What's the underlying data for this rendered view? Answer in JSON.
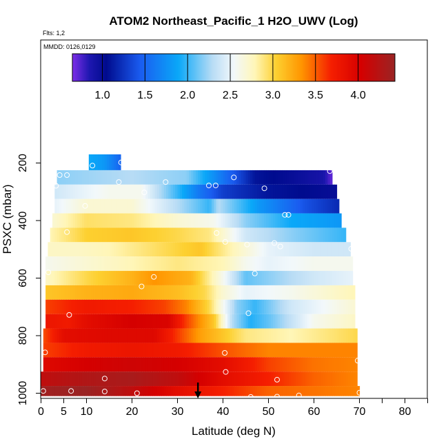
{
  "chart_data": {
    "type": "heatmap",
    "title": "ATOM2 Northeast_Pacific_1 H2O_UWV (Log)",
    "flights_note": "Flts: 1,2",
    "dates_note": "MMDD: 0126,0129",
    "xlabel": "Latitude (deg N)",
    "ylabel": "PSXC (mbar)",
    "xlim": [
      0,
      85
    ],
    "ylim": [
      1000,
      0
    ],
    "x_ticks": [
      0,
      5,
      10,
      20,
      30,
      40,
      50,
      60,
      70,
      80
    ],
    "x_minor_ticks": [
      75,
      85
    ],
    "y_ticks": [
      200,
      400,
      600,
      800,
      1000
    ],
    "colorbar": {
      "range": [
        0.65,
        4.45
      ],
      "ticks": [
        1.0,
        1.5,
        2.0,
        2.5,
        3.0,
        3.5,
        4.0
      ],
      "tick_labels": [
        "1.0",
        "1.5",
        "2.0",
        "2.5",
        "3.0",
        "3.5",
        "4.0"
      ],
      "color_stops": [
        {
          "v": 0.65,
          "c": "#7d2ee8"
        },
        {
          "v": 0.85,
          "c": "#1e17b0"
        },
        {
          "v": 1.05,
          "c": "#000b8e"
        },
        {
          "v": 1.45,
          "c": "#1a5cf0"
        },
        {
          "v": 1.9,
          "c": "#0aa8f8"
        },
        {
          "v": 2.3,
          "c": "#b8dcf5"
        },
        {
          "v": 2.55,
          "c": "#f2f8fb"
        },
        {
          "v": 2.8,
          "c": "#fff6b8"
        },
        {
          "v": 3.05,
          "c": "#fdd030"
        },
        {
          "v": 3.35,
          "c": "#ff9500"
        },
        {
          "v": 3.7,
          "c": "#f51e00"
        },
        {
          "v": 4.05,
          "c": "#d50000"
        },
        {
          "v": 4.45,
          "c": "#9a2424"
        }
      ]
    },
    "bands": [
      {
        "p_top": 170,
        "p_bot": 225,
        "lat_start": 10.5,
        "lat_end": 17.5,
        "profile": [
          [
            10.5,
            1.9
          ],
          [
            14,
            1.8
          ],
          [
            17.5,
            1.5
          ]
        ]
      },
      {
        "p_top": 225,
        "p_bot": 275,
        "lat_start": 3.5,
        "lat_end": 64,
        "profile": [
          [
            3.5,
            2.2
          ],
          [
            20,
            2.3
          ],
          [
            32,
            2.2
          ],
          [
            40,
            1.6
          ],
          [
            47,
            1.1
          ],
          [
            55,
            1.0
          ],
          [
            62,
            0.9
          ],
          [
            64,
            0.7
          ]
        ]
      },
      {
        "p_top": 275,
        "p_bot": 325,
        "lat_start": 3,
        "lat_end": 65,
        "profile": [
          [
            3,
            2.4
          ],
          [
            15,
            2.6
          ],
          [
            22,
            2.6
          ],
          [
            30,
            2.0
          ],
          [
            35,
            1.6
          ],
          [
            40,
            1.3
          ],
          [
            50,
            1.1
          ],
          [
            65,
            1.0
          ]
        ]
      },
      {
        "p_top": 325,
        "p_bot": 375,
        "lat_start": 3,
        "lat_end": 65.5,
        "profile": [
          [
            3,
            2.5
          ],
          [
            10,
            2.7
          ],
          [
            20,
            2.7
          ],
          [
            30,
            2.3
          ],
          [
            37,
            2.0
          ],
          [
            39,
            2.3
          ],
          [
            48,
            1.8
          ],
          [
            58,
            1.4
          ],
          [
            65.5,
            1.2
          ]
        ]
      },
      {
        "p_top": 375,
        "p_bot": 425,
        "lat_start": 2.5,
        "lat_end": 66,
        "profile": [
          [
            2.5,
            2.7
          ],
          [
            10,
            2.95
          ],
          [
            20,
            2.9
          ],
          [
            30,
            2.7
          ],
          [
            38,
            2.6
          ],
          [
            45,
            2.2
          ],
          [
            55,
            1.9
          ],
          [
            66,
            1.8
          ]
        ]
      },
      {
        "p_top": 425,
        "p_bot": 475,
        "lat_start": 2,
        "lat_end": 67,
        "profile": [
          [
            2,
            2.8
          ],
          [
            10,
            3.05
          ],
          [
            20,
            3.1
          ],
          [
            30,
            3.0
          ],
          [
            37,
            2.9
          ],
          [
            45,
            2.4
          ],
          [
            55,
            2.2
          ],
          [
            67,
            2.0
          ]
        ]
      },
      {
        "p_top": 475,
        "p_bot": 525,
        "lat_start": 1.5,
        "lat_end": 68,
        "profile": [
          [
            1.5,
            2.75
          ],
          [
            8,
            2.75
          ],
          [
            15,
            2.8
          ],
          [
            25,
            2.95
          ],
          [
            35,
            3.1
          ],
          [
            42,
            2.8
          ],
          [
            50,
            2.5
          ],
          [
            60,
            2.4
          ],
          [
            68,
            2.4
          ]
        ]
      },
      {
        "p_top": 525,
        "p_bot": 575,
        "lat_start": 1,
        "lat_end": 68.5,
        "profile": [
          [
            1,
            2.6
          ],
          [
            10,
            2.7
          ],
          [
            20,
            2.8
          ],
          [
            30,
            2.9
          ],
          [
            40,
            2.8
          ],
          [
            45,
            2.6
          ],
          [
            50,
            2.5
          ],
          [
            60,
            2.6
          ],
          [
            68.5,
            2.6
          ]
        ]
      },
      {
        "p_top": 575,
        "p_bot": 625,
        "lat_start": 1,
        "lat_end": 68.5,
        "profile": [
          [
            1,
            2.75
          ],
          [
            10,
            3.0
          ],
          [
            20,
            3.2
          ],
          [
            25,
            3.35
          ],
          [
            33,
            3.2
          ],
          [
            40,
            2.6
          ],
          [
            45,
            2.1
          ],
          [
            50,
            2.2
          ],
          [
            60,
            2.4
          ],
          [
            68.5,
            2.5
          ]
        ]
      },
      {
        "p_top": 625,
        "p_bot": 675,
        "lat_start": 1,
        "lat_end": 69,
        "profile": [
          [
            1,
            3.1
          ],
          [
            10,
            3.2
          ],
          [
            20,
            3.25
          ],
          [
            30,
            3.15
          ],
          [
            36,
            3.0
          ],
          [
            40,
            2.7
          ],
          [
            45,
            2.5
          ],
          [
            55,
            2.6
          ],
          [
            69,
            2.8
          ]
        ]
      },
      {
        "p_top": 675,
        "p_bot": 725,
        "lat_start": 1,
        "lat_end": 69,
        "profile": [
          [
            1,
            3.6
          ],
          [
            10,
            3.75
          ],
          [
            20,
            3.7
          ],
          [
            27,
            3.6
          ],
          [
            32,
            3.4
          ],
          [
            37,
            3.0
          ],
          [
            43,
            2.2
          ],
          [
            47,
            2.0
          ],
          [
            55,
            2.4
          ],
          [
            69,
            2.7
          ]
        ]
      },
      {
        "p_top": 725,
        "p_bot": 775,
        "lat_start": 1,
        "lat_end": 69,
        "profile": [
          [
            1,
            3.8
          ],
          [
            6,
            3.75
          ],
          [
            10,
            3.9
          ],
          [
            20,
            4.05
          ],
          [
            28,
            4.0
          ],
          [
            32,
            3.6
          ],
          [
            38,
            3.1
          ],
          [
            42,
            2.3
          ],
          [
            46,
            1.95
          ],
          [
            50,
            2.1
          ],
          [
            60,
            2.6
          ],
          [
            69,
            2.75
          ]
        ]
      },
      {
        "p_top": 775,
        "p_bot": 825,
        "lat_start": 0.5,
        "lat_end": 69.5,
        "profile": [
          [
            0.5,
            3.55
          ],
          [
            5,
            3.9
          ],
          [
            15,
            3.95
          ],
          [
            25,
            3.95
          ],
          [
            35,
            3.3
          ],
          [
            40,
            3.1
          ],
          [
            45,
            2.9
          ],
          [
            55,
            2.8
          ],
          [
            69.5,
            3.0
          ]
        ]
      },
      {
        "p_top": 825,
        "p_bot": 875,
        "lat_start": 0.5,
        "lat_end": 69.5,
        "profile": [
          [
            0.5,
            3.6
          ],
          [
            10,
            3.75
          ],
          [
            20,
            3.8
          ],
          [
            30,
            3.75
          ],
          [
            40,
            3.55
          ],
          [
            50,
            3.4
          ],
          [
            60,
            3.4
          ],
          [
            69.5,
            3.4
          ]
        ]
      },
      {
        "p_top": 875,
        "p_bot": 925,
        "lat_start": 0.5,
        "lat_end": 69.5,
        "profile": [
          [
            0.5,
            3.95
          ],
          [
            10,
            4.05
          ],
          [
            20,
            4.1
          ],
          [
            30,
            4.05
          ],
          [
            40,
            3.9
          ],
          [
            50,
            3.6
          ],
          [
            60,
            3.45
          ],
          [
            69.5,
            3.4
          ]
        ]
      },
      {
        "p_top": 925,
        "p_bot": 975,
        "lat_start": 0,
        "lat_end": 69.5,
        "profile": [
          [
            0,
            4.2
          ],
          [
            10,
            4.3
          ],
          [
            20,
            4.35
          ],
          [
            30,
            4.2
          ],
          [
            40,
            3.9
          ],
          [
            50,
            3.7
          ],
          [
            60,
            3.5
          ],
          [
            69.5,
            3.4
          ]
        ]
      },
      {
        "p_top": 975,
        "p_bot": 1010,
        "lat_start": 0,
        "lat_end": 70,
        "profile": [
          [
            0,
            4.4
          ],
          [
            10,
            4.45
          ],
          [
            20,
            4.2
          ],
          [
            30,
            3.9
          ],
          [
            40,
            3.7
          ],
          [
            50,
            3.5
          ],
          [
            60,
            3.45
          ],
          [
            70,
            3.4
          ]
        ]
      }
    ],
    "markers": [
      {
        "lat": 11.3,
        "p": 209
      },
      {
        "lat": 17.6,
        "p": 198
      },
      {
        "lat": 4.1,
        "p": 242
      },
      {
        "lat": 5.7,
        "p": 242
      },
      {
        "lat": 42.4,
        "p": 250
      },
      {
        "lat": 63.5,
        "p": 228
      },
      {
        "lat": 3.3,
        "p": 279
      },
      {
        "lat": 17.1,
        "p": 266
      },
      {
        "lat": 27.4,
        "p": 266
      },
      {
        "lat": 36.9,
        "p": 278
      },
      {
        "lat": 38.4,
        "p": 278
      },
      {
        "lat": 49.1,
        "p": 288
      },
      {
        "lat": 22.7,
        "p": 302
      },
      {
        "lat": 9.7,
        "p": 349
      },
      {
        "lat": 53.6,
        "p": 380
      },
      {
        "lat": 54.4,
        "p": 380
      },
      {
        "lat": 5.7,
        "p": 440
      },
      {
        "lat": 38.6,
        "p": 443
      },
      {
        "lat": 40.5,
        "p": 474
      },
      {
        "lat": 45.3,
        "p": 483
      },
      {
        "lat": 51.3,
        "p": 478
      },
      {
        "lat": 52.6,
        "p": 490
      },
      {
        "lat": 68.2,
        "p": 498
      },
      {
        "lat": 1.6,
        "p": 580
      },
      {
        "lat": 24.8,
        "p": 596
      },
      {
        "lat": 47.0,
        "p": 584
      },
      {
        "lat": 22.1,
        "p": 629
      },
      {
        "lat": 6.2,
        "p": 728
      },
      {
        "lat": 45.6,
        "p": 722
      },
      {
        "lat": 0.9,
        "p": 858
      },
      {
        "lat": 40.4,
        "p": 860
      },
      {
        "lat": 69.6,
        "p": 887
      },
      {
        "lat": 40.6,
        "p": 926
      },
      {
        "lat": 14.0,
        "p": 949
      },
      {
        "lat": 51.9,
        "p": 953
      },
      {
        "lat": 0.5,
        "p": 992
      },
      {
        "lat": 6.6,
        "p": 992
      },
      {
        "lat": 14.0,
        "p": 994
      },
      {
        "lat": 21.1,
        "p": 1000
      },
      {
        "lat": 46.1,
        "p": 1013
      },
      {
        "lat": 51.9,
        "p": 1012
      },
      {
        "lat": 56.7,
        "p": 1008
      },
      {
        "lat": 70.0,
        "p": 998
      }
    ],
    "pointer_arrow": {
      "lat": 34.5
    }
  }
}
